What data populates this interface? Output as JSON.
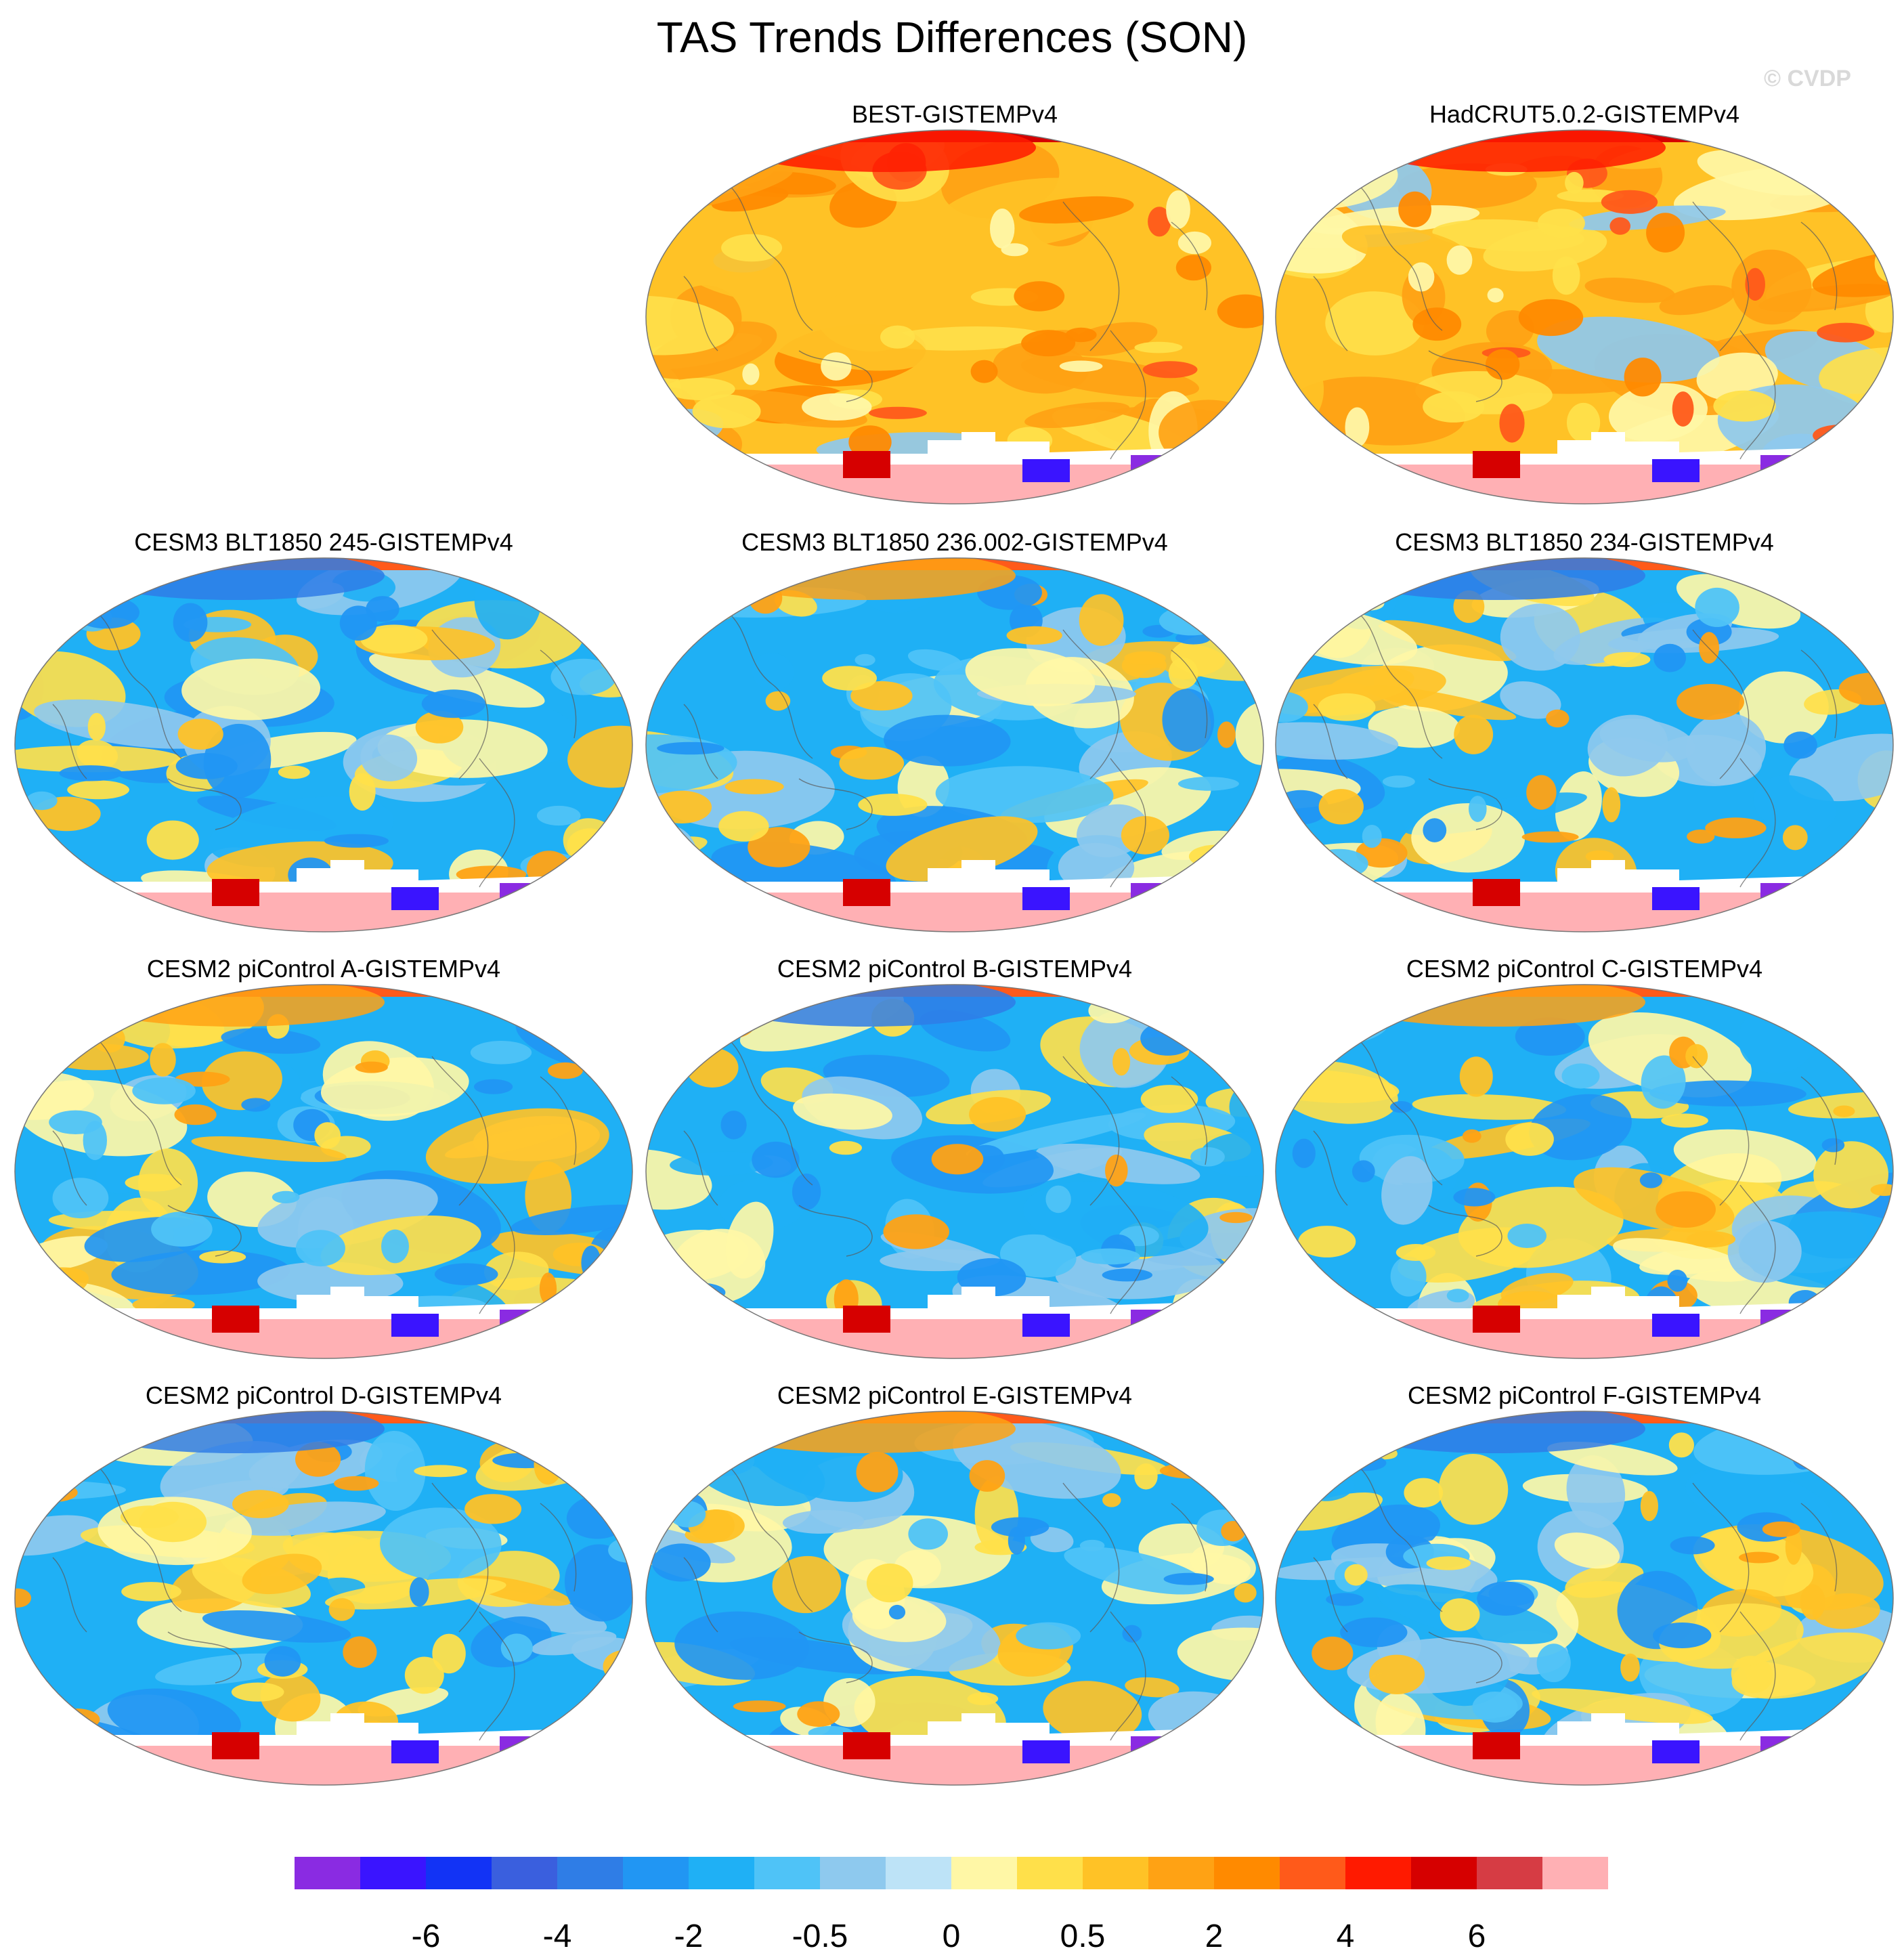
{
  "title": "TAS Trends Differences (SON)",
  "watermark": "© CVDP",
  "chart_data": {
    "type": "heatmap",
    "title": "TAS Trends Differences (SON)",
    "projection": "Robinson-style global maps (Pacific-centered)",
    "variable": "Surface air temperature trend difference vs GISTEMPv4",
    "panels": [
      {
        "label": "BEST-GISTEMPv4",
        "pattern": "warm",
        "mean_level": 1.0
      },
      {
        "label": "HadCRUT5.0.2-GISTEMPv4",
        "pattern": "warm",
        "mean_level": 1.0
      },
      {
        "label": "CESM3 BLT1850 245-GISTEMPv4",
        "pattern": "cool",
        "mean_level": -1.0
      },
      {
        "label": "CESM3 BLT1850 236.002-GISTEMPv4",
        "pattern": "cool",
        "mean_level": -1.0
      },
      {
        "label": "CESM3 BLT1850 234-GISTEMPv4",
        "pattern": "cool",
        "mean_level": -1.0
      },
      {
        "label": "CESM2 piControl A-GISTEMPv4",
        "pattern": "cool",
        "mean_level": -1.0
      },
      {
        "label": "CESM2 piControl B-GISTEMPv4",
        "pattern": "cool",
        "mean_level": -1.0
      },
      {
        "label": "CESM2 piControl C-GISTEMPv4",
        "pattern": "cool",
        "mean_level": -1.0
      },
      {
        "label": "CESM2 piControl D-GISTEMPv4",
        "pattern": "cool",
        "mean_level": -1.0
      },
      {
        "label": "CESM2 piControl E-GISTEMPv4",
        "pattern": "cool",
        "mean_level": -1.0
      },
      {
        "label": "CESM2 piControl F-GISTEMPv4",
        "pattern": "cool",
        "mean_level": -1.0
      }
    ],
    "colorbar": {
      "colors": [
        "#8a2be2",
        "#3a14ff",
        "#1233f5",
        "#3a5fde",
        "#2f7de6",
        "#2196f3",
        "#1fb0f5",
        "#4fc3f7",
        "#8ec9ee",
        "#bde3f7",
        "#fff7a6",
        "#ffe04a",
        "#ffc226",
        "#ffa214",
        "#ff8a00",
        "#ff5a1a",
        "#ff1a00",
        "#d60000",
        "#d63c44",
        "#ffb0b4"
      ],
      "tick_labels": [
        "-6",
        "-4",
        "-2",
        "-0.5",
        "0",
        "0.5",
        "2",
        "4",
        "6"
      ],
      "levels": [
        -8,
        -6,
        -5,
        -4,
        -3,
        -2,
        -1,
        -0.5,
        -0.2,
        0,
        0.2,
        0.5,
        1,
        2,
        3,
        4,
        5,
        6,
        8
      ]
    }
  }
}
